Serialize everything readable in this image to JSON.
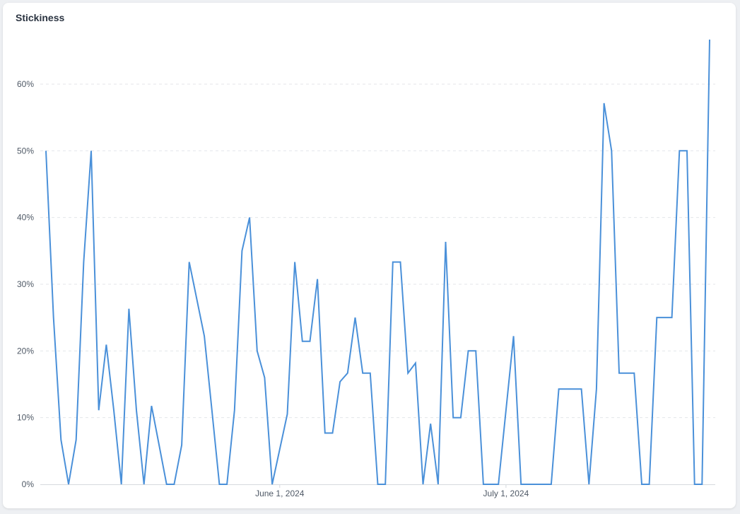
{
  "card": {
    "title": "Stickiness"
  },
  "chart_data": {
    "type": "line",
    "title": "Stickiness",
    "xlabel": "",
    "ylabel": "",
    "ylim": [
      0,
      0.6667
    ],
    "grid": true,
    "y_format": "percent",
    "y_ticks": [
      {
        "value": 0,
        "label": "0%"
      },
      {
        "value": 0.1,
        "label": "10%"
      },
      {
        "value": 0.2,
        "label": "20%"
      },
      {
        "value": 0.3,
        "label": "30%"
      },
      {
        "value": 0.4,
        "label": "40%"
      },
      {
        "value": 0.5,
        "label": "50%"
      },
      {
        "value": 0.6,
        "label": "60%"
      }
    ],
    "x_ticks": [
      {
        "date": "2024-06-01",
        "label": "June 1, 2024"
      },
      {
        "date": "2024-07-01",
        "label": "July 1, 2024"
      }
    ],
    "series": [
      {
        "color": "#4a90d9",
        "points": [
          [
            "2024-05-01",
            0.5
          ],
          [
            "2024-05-02",
            0.25
          ],
          [
            "2024-05-03",
            0.0667
          ],
          [
            "2024-05-04",
            0.0
          ],
          [
            "2024-05-05",
            0.0667
          ],
          [
            "2024-05-06",
            0.3333
          ],
          [
            "2024-05-07",
            0.5
          ],
          [
            "2024-05-08",
            0.1111
          ],
          [
            "2024-05-09",
            0.2093
          ],
          [
            "2024-05-10",
            0.1111
          ],
          [
            "2024-05-11",
            0.0
          ],
          [
            "2024-05-12",
            0.2632
          ],
          [
            "2024-05-13",
            0.1111
          ],
          [
            "2024-05-14",
            0.0
          ],
          [
            "2024-05-15",
            0.1176
          ],
          [
            "2024-05-16",
            0.0588
          ],
          [
            "2024-05-17",
            0.0
          ],
          [
            "2024-05-18",
            0.0
          ],
          [
            "2024-05-19",
            0.0588
          ],
          [
            "2024-05-20",
            0.3333
          ],
          [
            "2024-05-21",
            0.2778
          ],
          [
            "2024-05-22",
            0.2222
          ],
          [
            "2024-05-23",
            0.1111
          ],
          [
            "2024-05-24",
            0.0
          ],
          [
            "2024-05-25",
            0.0
          ],
          [
            "2024-05-26",
            0.1111
          ],
          [
            "2024-05-27",
            0.35
          ],
          [
            "2024-05-28",
            0.4
          ],
          [
            "2024-05-29",
            0.2
          ],
          [
            "2024-05-30",
            0.16
          ],
          [
            "2024-05-31",
            0.0
          ],
          [
            "2024-06-01",
            0.0526
          ],
          [
            "2024-06-02",
            0.1053
          ],
          [
            "2024-06-03",
            0.3333
          ],
          [
            "2024-06-04",
            0.2143
          ],
          [
            "2024-06-05",
            0.2143
          ],
          [
            "2024-06-06",
            0.3077
          ],
          [
            "2024-06-07",
            0.0769
          ],
          [
            "2024-06-08",
            0.0769
          ],
          [
            "2024-06-09",
            0.1538
          ],
          [
            "2024-06-10",
            0.1667
          ],
          [
            "2024-06-11",
            0.25
          ],
          [
            "2024-06-12",
            0.1667
          ],
          [
            "2024-06-13",
            0.1667
          ],
          [
            "2024-06-14",
            0.0
          ],
          [
            "2024-06-15",
            0.0
          ],
          [
            "2024-06-16",
            0.3333
          ],
          [
            "2024-06-17",
            0.3333
          ],
          [
            "2024-06-18",
            0.1667
          ],
          [
            "2024-06-19",
            0.1818
          ],
          [
            "2024-06-20",
            0.0
          ],
          [
            "2024-06-21",
            0.0909
          ],
          [
            "2024-06-22",
            0.0
          ],
          [
            "2024-06-23",
            0.3636
          ],
          [
            "2024-06-24",
            0.1
          ],
          [
            "2024-06-25",
            0.1
          ],
          [
            "2024-06-26",
            0.2
          ],
          [
            "2024-06-27",
            0.2
          ],
          [
            "2024-06-28",
            0.0
          ],
          [
            "2024-06-29",
            0.0
          ],
          [
            "2024-06-30",
            0.0
          ],
          [
            "2024-07-01",
            0.1111
          ],
          [
            "2024-07-02",
            0.2222
          ],
          [
            "2024-07-03",
            0.0
          ],
          [
            "2024-07-04",
            0.0
          ],
          [
            "2024-07-05",
            0.0
          ],
          [
            "2024-07-06",
            0.0
          ],
          [
            "2024-07-07",
            0.0
          ],
          [
            "2024-07-08",
            0.1429
          ],
          [
            "2024-07-09",
            0.1429
          ],
          [
            "2024-07-10",
            0.1429
          ],
          [
            "2024-07-11",
            0.1429
          ],
          [
            "2024-07-12",
            0.0
          ],
          [
            "2024-07-13",
            0.1429
          ],
          [
            "2024-07-14",
            0.5714
          ],
          [
            "2024-07-15",
            0.5
          ],
          [
            "2024-07-16",
            0.1667
          ],
          [
            "2024-07-17",
            0.1667
          ],
          [
            "2024-07-18",
            0.1667
          ],
          [
            "2024-07-19",
            0.0
          ],
          [
            "2024-07-20",
            0.0
          ],
          [
            "2024-07-21",
            0.25
          ],
          [
            "2024-07-22",
            0.25
          ],
          [
            "2024-07-23",
            0.25
          ],
          [
            "2024-07-24",
            0.5
          ],
          [
            "2024-07-25",
            0.5
          ],
          [
            "2024-07-26",
            0.0
          ],
          [
            "2024-07-27",
            0.0
          ],
          [
            "2024-07-28",
            0.6667
          ]
        ]
      }
    ]
  }
}
